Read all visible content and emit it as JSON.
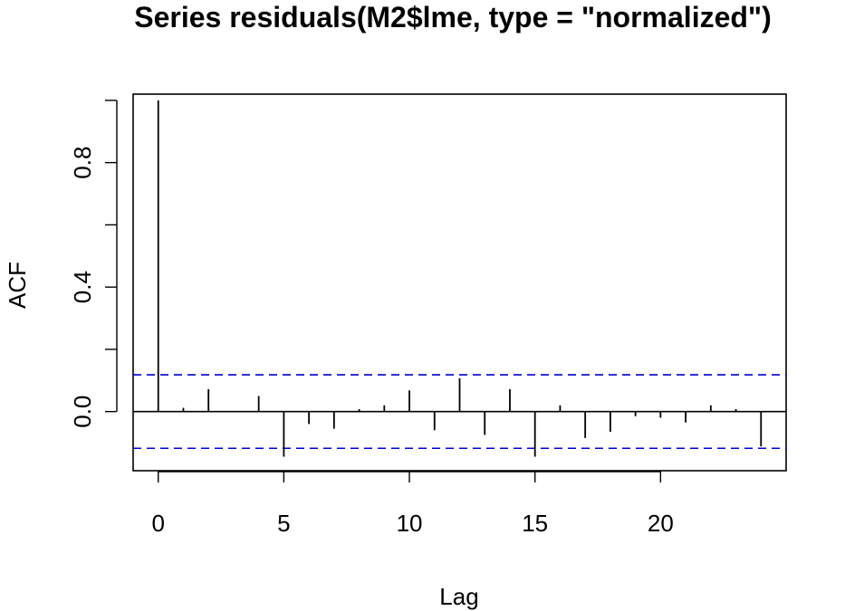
{
  "chart_data": {
    "type": "bar",
    "title": "Series  residuals(M2$lme, type = \"normalized\")",
    "xlabel": "Lag",
    "ylabel": "ACF",
    "xlim": [
      -1,
      25
    ],
    "ylim": [
      -0.19,
      1.02
    ],
    "x_ticks": [
      0,
      5,
      10,
      15,
      20
    ],
    "x_tick_labels": [
      "0",
      "5",
      "10",
      "15",
      "20"
    ],
    "y_ticks": [
      0.0,
      0.2,
      0.4,
      0.6,
      0.8,
      1.0
    ],
    "y_tick_labels": [
      "0.0",
      "",
      "0.4",
      "",
      "0.8",
      ""
    ],
    "lags": [
      0,
      1,
      2,
      3,
      4,
      5,
      6,
      7,
      8,
      9,
      10,
      11,
      12,
      13,
      14,
      15,
      16,
      17,
      18,
      19,
      20,
      21,
      22,
      23,
      24
    ],
    "acf": [
      1.0,
      0.012,
      0.072,
      0.0,
      0.05,
      -0.145,
      -0.04,
      -0.055,
      0.008,
      0.02,
      0.068,
      -0.06,
      0.107,
      -0.075,
      0.072,
      -0.145,
      0.02,
      -0.085,
      -0.065,
      -0.015,
      -0.02,
      -0.035,
      0.02,
      0.008,
      -0.112
    ],
    "confidence_limit": 0.118,
    "confidence_line_color": "#0000cc",
    "bar_color": "#000000",
    "grid": false,
    "legend": "none"
  }
}
